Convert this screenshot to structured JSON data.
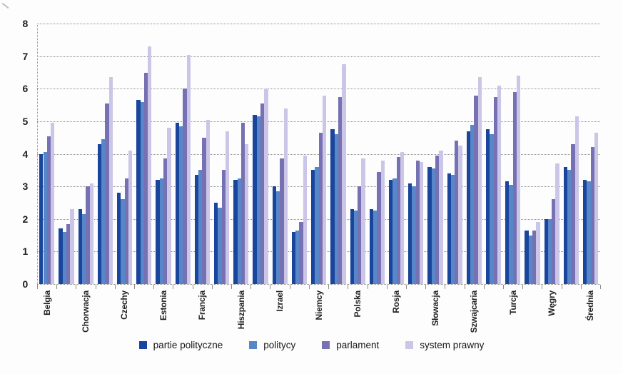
{
  "chart_data": {
    "type": "bar",
    "title": "",
    "xlabel": "",
    "ylabel": "",
    "ylim": [
      0,
      8
    ],
    "yticks": [
      0,
      1,
      2,
      3,
      4,
      5,
      6,
      7,
      8
    ],
    "grid": "horizontal dotted lines at every integer, dotted vertical y-axis",
    "legend_position": "bottom-center",
    "axis_note": "29 grouped bar clusters; x-axis displays only every second category label, labels rotated 90 degrees",
    "series": [
      {
        "name": "partie polityczne",
        "color": "#1a459c"
      },
      {
        "name": "politycy",
        "color": "#5787c8"
      },
      {
        "name": "parlament",
        "color": "#7571b2"
      },
      {
        "name": "system prawny",
        "color": "#cbc6e8"
      }
    ],
    "groups": [
      {
        "label": "Belgia",
        "values": [
          4.0,
          4.05,
          4.55,
          4.95
        ]
      },
      {
        "label": "",
        "values": [
          1.7,
          1.6,
          1.85,
          2.3
        ]
      },
      {
        "label": "Chorwacja",
        "values": [
          2.3,
          2.15,
          3.0,
          3.1
        ]
      },
      {
        "label": "",
        "values": [
          4.3,
          4.45,
          5.55,
          6.35
        ]
      },
      {
        "label": "Czechy",
        "values": [
          2.8,
          2.6,
          3.25,
          4.1
        ]
      },
      {
        "label": "",
        "values": [
          5.65,
          5.6,
          6.5,
          7.3
        ]
      },
      {
        "label": "Estonia",
        "values": [
          3.2,
          3.25,
          3.85,
          4.8
        ]
      },
      {
        "label": "",
        "values": [
          4.95,
          4.85,
          6.0,
          7.05
        ]
      },
      {
        "label": "Francja",
        "values": [
          3.35,
          3.5,
          4.5,
          5.05
        ]
      },
      {
        "label": "",
        "values": [
          2.5,
          2.35,
          3.5,
          4.7
        ]
      },
      {
        "label": "Hiszpania",
        "values": [
          3.2,
          3.25,
          4.95,
          4.3
        ]
      },
      {
        "label": "",
        "values": [
          5.2,
          5.15,
          5.55,
          6.0
        ]
      },
      {
        "label": "Izrael",
        "values": [
          3.0,
          2.85,
          3.85,
          5.4
        ]
      },
      {
        "label": "",
        "values": [
          1.6,
          1.65,
          1.9,
          3.95
        ]
      },
      {
        "label": "Niemcy",
        "values": [
          3.5,
          3.6,
          4.65,
          5.8
        ]
      },
      {
        "label": "",
        "values": [
          4.75,
          4.6,
          5.75,
          6.75
        ]
      },
      {
        "label": "Polska",
        "values": [
          2.3,
          2.25,
          3.0,
          3.85
        ]
      },
      {
        "label": "",
        "values": [
          2.3,
          2.25,
          3.45,
          3.8
        ]
      },
      {
        "label": "Rosja",
        "values": [
          3.2,
          3.25,
          3.9,
          4.05
        ]
      },
      {
        "label": "",
        "values": [
          3.1,
          3.0,
          3.8,
          3.75
        ]
      },
      {
        "label": "Słowacja",
        "values": [
          3.6,
          3.55,
          3.95,
          4.1
        ]
      },
      {
        "label": "",
        "values": [
          3.4,
          3.35,
          4.4,
          4.25
        ]
      },
      {
        "label": "Szwajcaria",
        "values": [
          4.7,
          4.9,
          5.8,
          6.35
        ]
      },
      {
        "label": "",
        "values": [
          4.75,
          4.6,
          5.75,
          6.1
        ]
      },
      {
        "label": "Turcja",
        "values": [
          3.15,
          3.05,
          5.9,
          6.4
        ]
      },
      {
        "label": "",
        "values": [
          1.65,
          1.5,
          1.65,
          1.9
        ]
      },
      {
        "label": "Węgry",
        "values": [
          2.0,
          2.0,
          2.6,
          3.7
        ]
      },
      {
        "label": "",
        "values": [
          3.6,
          3.5,
          4.3,
          5.15
        ]
      },
      {
        "label": "Średnia",
        "values": [
          3.2,
          3.15,
          4.2,
          4.65
        ]
      }
    ]
  },
  "colors": {
    "gridline": "#8f8f8f",
    "axis_text": "#1f1f1f",
    "background": "#fdfdfd"
  },
  "legend": {
    "items": [
      {
        "label": "partie polityczne",
        "color": "#1a459c"
      },
      {
        "label": "politycy",
        "color": "#5787c8"
      },
      {
        "label": "parlament",
        "color": "#7571b2"
      },
      {
        "label": "system prawny",
        "color": "#cbc6e8"
      }
    ]
  }
}
